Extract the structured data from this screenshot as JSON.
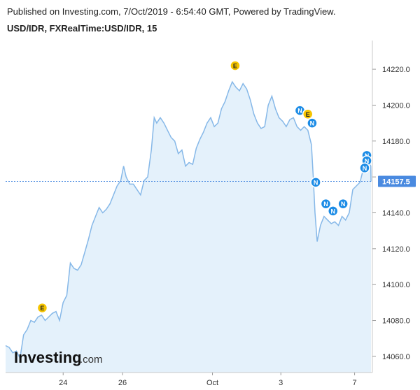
{
  "header": {
    "published": "Published on Investing.com, 7/Oct/2019 - 6:54:40 GMT, Powered by TradingView.",
    "symbol": "USD/IDR, FXRealTime:USD/IDR, 15"
  },
  "logo": {
    "main": "Investing",
    "suffix": ".com"
  },
  "colors": {
    "line": "#86b8e8",
    "fill": "#e4f1fb",
    "last_price_bg": "#4a8ae0",
    "event_e": "#f5c400",
    "event_n": "#1c8ce6"
  },
  "chart_data": {
    "type": "area",
    "title": "USD/IDR, FXRealTime:USD/IDR, 15",
    "xlabel": "",
    "ylabel": "",
    "x_tick_labels": [
      {
        "label": "24",
        "t": 0.16
      },
      {
        "label": "26",
        "t": 0.325
      },
      {
        "label": "Oct",
        "t": 0.575
      },
      {
        "label": "3",
        "t": 0.765
      },
      {
        "label": "7",
        "t": 0.97
      }
    ],
    "y_ticks": [
      14060,
      14080,
      14100,
      14120,
      14140,
      14160,
      14180,
      14200,
      14220
    ],
    "y_tick_labels": [
      "14060.0",
      "14080.0",
      "14100.0",
      "14120.0",
      "14140.0",
      "",
      "14180.0",
      "14200.0",
      "14220.0"
    ],
    "ylim": [
      14051,
      14236
    ],
    "last_price": 14157.5,
    "last_price_label": "14157.5",
    "grid": false,
    "series": [
      {
        "points": [
          [
            0.0,
            14066
          ],
          [
            0.01,
            14065
          ],
          [
            0.02,
            14062
          ],
          [
            0.03,
            14063
          ],
          [
            0.04,
            14059
          ],
          [
            0.05,
            14072
          ],
          [
            0.06,
            14075
          ],
          [
            0.07,
            14080
          ],
          [
            0.08,
            14079
          ],
          [
            0.09,
            14082
          ],
          [
            0.1,
            14083
          ],
          [
            0.11,
            14080
          ],
          [
            0.12,
            14082
          ],
          [
            0.13,
            14084
          ],
          [
            0.14,
            14085
          ],
          [
            0.15,
            14080
          ],
          [
            0.16,
            14090
          ],
          [
            0.17,
            14094
          ],
          [
            0.18,
            14112
          ],
          [
            0.19,
            14109
          ],
          [
            0.2,
            14108
          ],
          [
            0.21,
            14111
          ],
          [
            0.22,
            14118
          ],
          [
            0.23,
            14125
          ],
          [
            0.24,
            14133
          ],
          [
            0.25,
            14138
          ],
          [
            0.26,
            14143
          ],
          [
            0.27,
            14140
          ],
          [
            0.28,
            14142
          ],
          [
            0.29,
            14145
          ],
          [
            0.3,
            14150
          ],
          [
            0.31,
            14155
          ],
          [
            0.32,
            14158
          ],
          [
            0.328,
            14166
          ],
          [
            0.335,
            14160
          ],
          [
            0.345,
            14156
          ],
          [
            0.355,
            14156
          ],
          [
            0.365,
            14153
          ],
          [
            0.375,
            14150
          ],
          [
            0.385,
            14158
          ],
          [
            0.395,
            14160
          ],
          [
            0.405,
            14175
          ],
          [
            0.413,
            14193
          ],
          [
            0.42,
            14190
          ],
          [
            0.43,
            14193
          ],
          [
            0.44,
            14190
          ],
          [
            0.45,
            14186
          ],
          [
            0.46,
            14182
          ],
          [
            0.47,
            14180
          ],
          [
            0.48,
            14173
          ],
          [
            0.49,
            14175
          ],
          [
            0.5,
            14166
          ],
          [
            0.51,
            14168
          ],
          [
            0.52,
            14167
          ],
          [
            0.53,
            14176
          ],
          [
            0.54,
            14181
          ],
          [
            0.55,
            14185
          ],
          [
            0.56,
            14190
          ],
          [
            0.57,
            14193
          ],
          [
            0.58,
            14188
          ],
          [
            0.59,
            14190
          ],
          [
            0.6,
            14198
          ],
          [
            0.61,
            14202
          ],
          [
            0.62,
            14208
          ],
          [
            0.63,
            14213
          ],
          [
            0.64,
            14210
          ],
          [
            0.65,
            14208
          ],
          [
            0.66,
            14212
          ],
          [
            0.67,
            14209
          ],
          [
            0.68,
            14203
          ],
          [
            0.69,
            14195
          ],
          [
            0.7,
            14190
          ],
          [
            0.71,
            14187
          ],
          [
            0.72,
            14188
          ],
          [
            0.73,
            14200
          ],
          [
            0.74,
            14205
          ],
          [
            0.75,
            14198
          ],
          [
            0.76,
            14193
          ],
          [
            0.77,
            14191
          ],
          [
            0.78,
            14188
          ],
          [
            0.79,
            14192
          ],
          [
            0.8,
            14193
          ],
          [
            0.81,
            14188
          ],
          [
            0.82,
            14186
          ],
          [
            0.83,
            14188
          ],
          [
            0.84,
            14186
          ],
          [
            0.85,
            14178
          ],
          [
            0.855,
            14160
          ],
          [
            0.86,
            14140
          ],
          [
            0.866,
            14124
          ],
          [
            0.875,
            14133
          ],
          [
            0.885,
            14138
          ],
          [
            0.895,
            14136
          ],
          [
            0.905,
            14134
          ],
          [
            0.915,
            14135
          ],
          [
            0.925,
            14133
          ],
          [
            0.935,
            14138
          ],
          [
            0.945,
            14136
          ],
          [
            0.955,
            14140
          ],
          [
            0.965,
            14153
          ],
          [
            0.975,
            14155
          ],
          [
            0.985,
            14157
          ],
          [
            0.995,
            14165
          ],
          [
            1.005,
            14172
          ],
          [
            1.015,
            14166
          ],
          [
            1.025,
            14158
          ],
          [
            1.032,
            14157.5
          ]
        ]
      }
    ],
    "events": [
      {
        "type": "E",
        "t": 0.102,
        "price": 14087
      },
      {
        "type": "E",
        "t": 0.638,
        "price": 14222
      },
      {
        "type": "N",
        "t": 0.818,
        "price": 14197
      },
      {
        "type": "E",
        "t": 0.84,
        "price": 14195
      },
      {
        "type": "N",
        "t": 0.852,
        "price": 14190
      },
      {
        "type": "N",
        "t": 0.862,
        "price": 14157
      },
      {
        "type": "N",
        "t": 0.89,
        "price": 14145
      },
      {
        "type": "N",
        "t": 0.91,
        "price": 14141
      },
      {
        "type": "N",
        "t": 0.938,
        "price": 14145
      },
      {
        "type": "N",
        "t": 1.005,
        "price": 14172
      },
      {
        "type": "N",
        "t": 1.012,
        "price": 14169
      },
      {
        "type": "N",
        "t": 0.998,
        "price": 14165
      }
    ]
  }
}
